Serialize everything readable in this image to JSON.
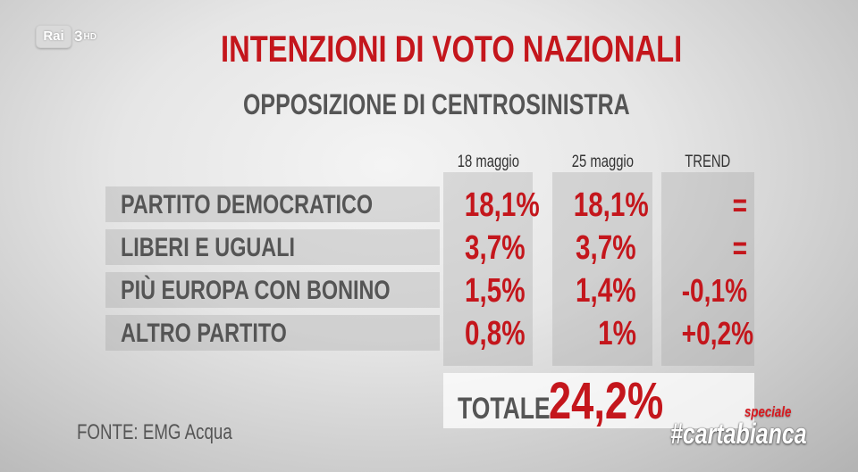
{
  "channel": {
    "logo_text": "Rai",
    "number": "3",
    "hd": "HD"
  },
  "title": "INTENZIONI DI VOTO NAZIONALI",
  "subtitle": "OPPOSIZIONE DI CENTROSINISTRA",
  "table": {
    "headers": [
      "18 maggio",
      "25 maggio",
      "TREND"
    ],
    "rows": [
      {
        "party": "PARTITO DEMOCRATICO",
        "v1": "18,1%",
        "v2": "18,1%",
        "trend": "="
      },
      {
        "party": "LIBERI E UGUALI",
        "v1": "3,7%",
        "v2": "3,7%",
        "trend": "="
      },
      {
        "party": "PIÙ EUROPA CON BONINO",
        "v1": "1,5%",
        "v2": "1,4%",
        "trend": "-0,1%"
      },
      {
        "party": "ALTRO PARTITO",
        "v1": "0,8%",
        "v2": "1%",
        "trend": "+0,2%"
      }
    ]
  },
  "total": {
    "label": "TOTALE",
    "value": "24,2%"
  },
  "source": "FONTE: EMG Acqua",
  "brand": {
    "speciale": "speciale",
    "hashtag": "#cartabianca"
  },
  "colors": {
    "accent": "#c4161c",
    "text": "#555555"
  }
}
